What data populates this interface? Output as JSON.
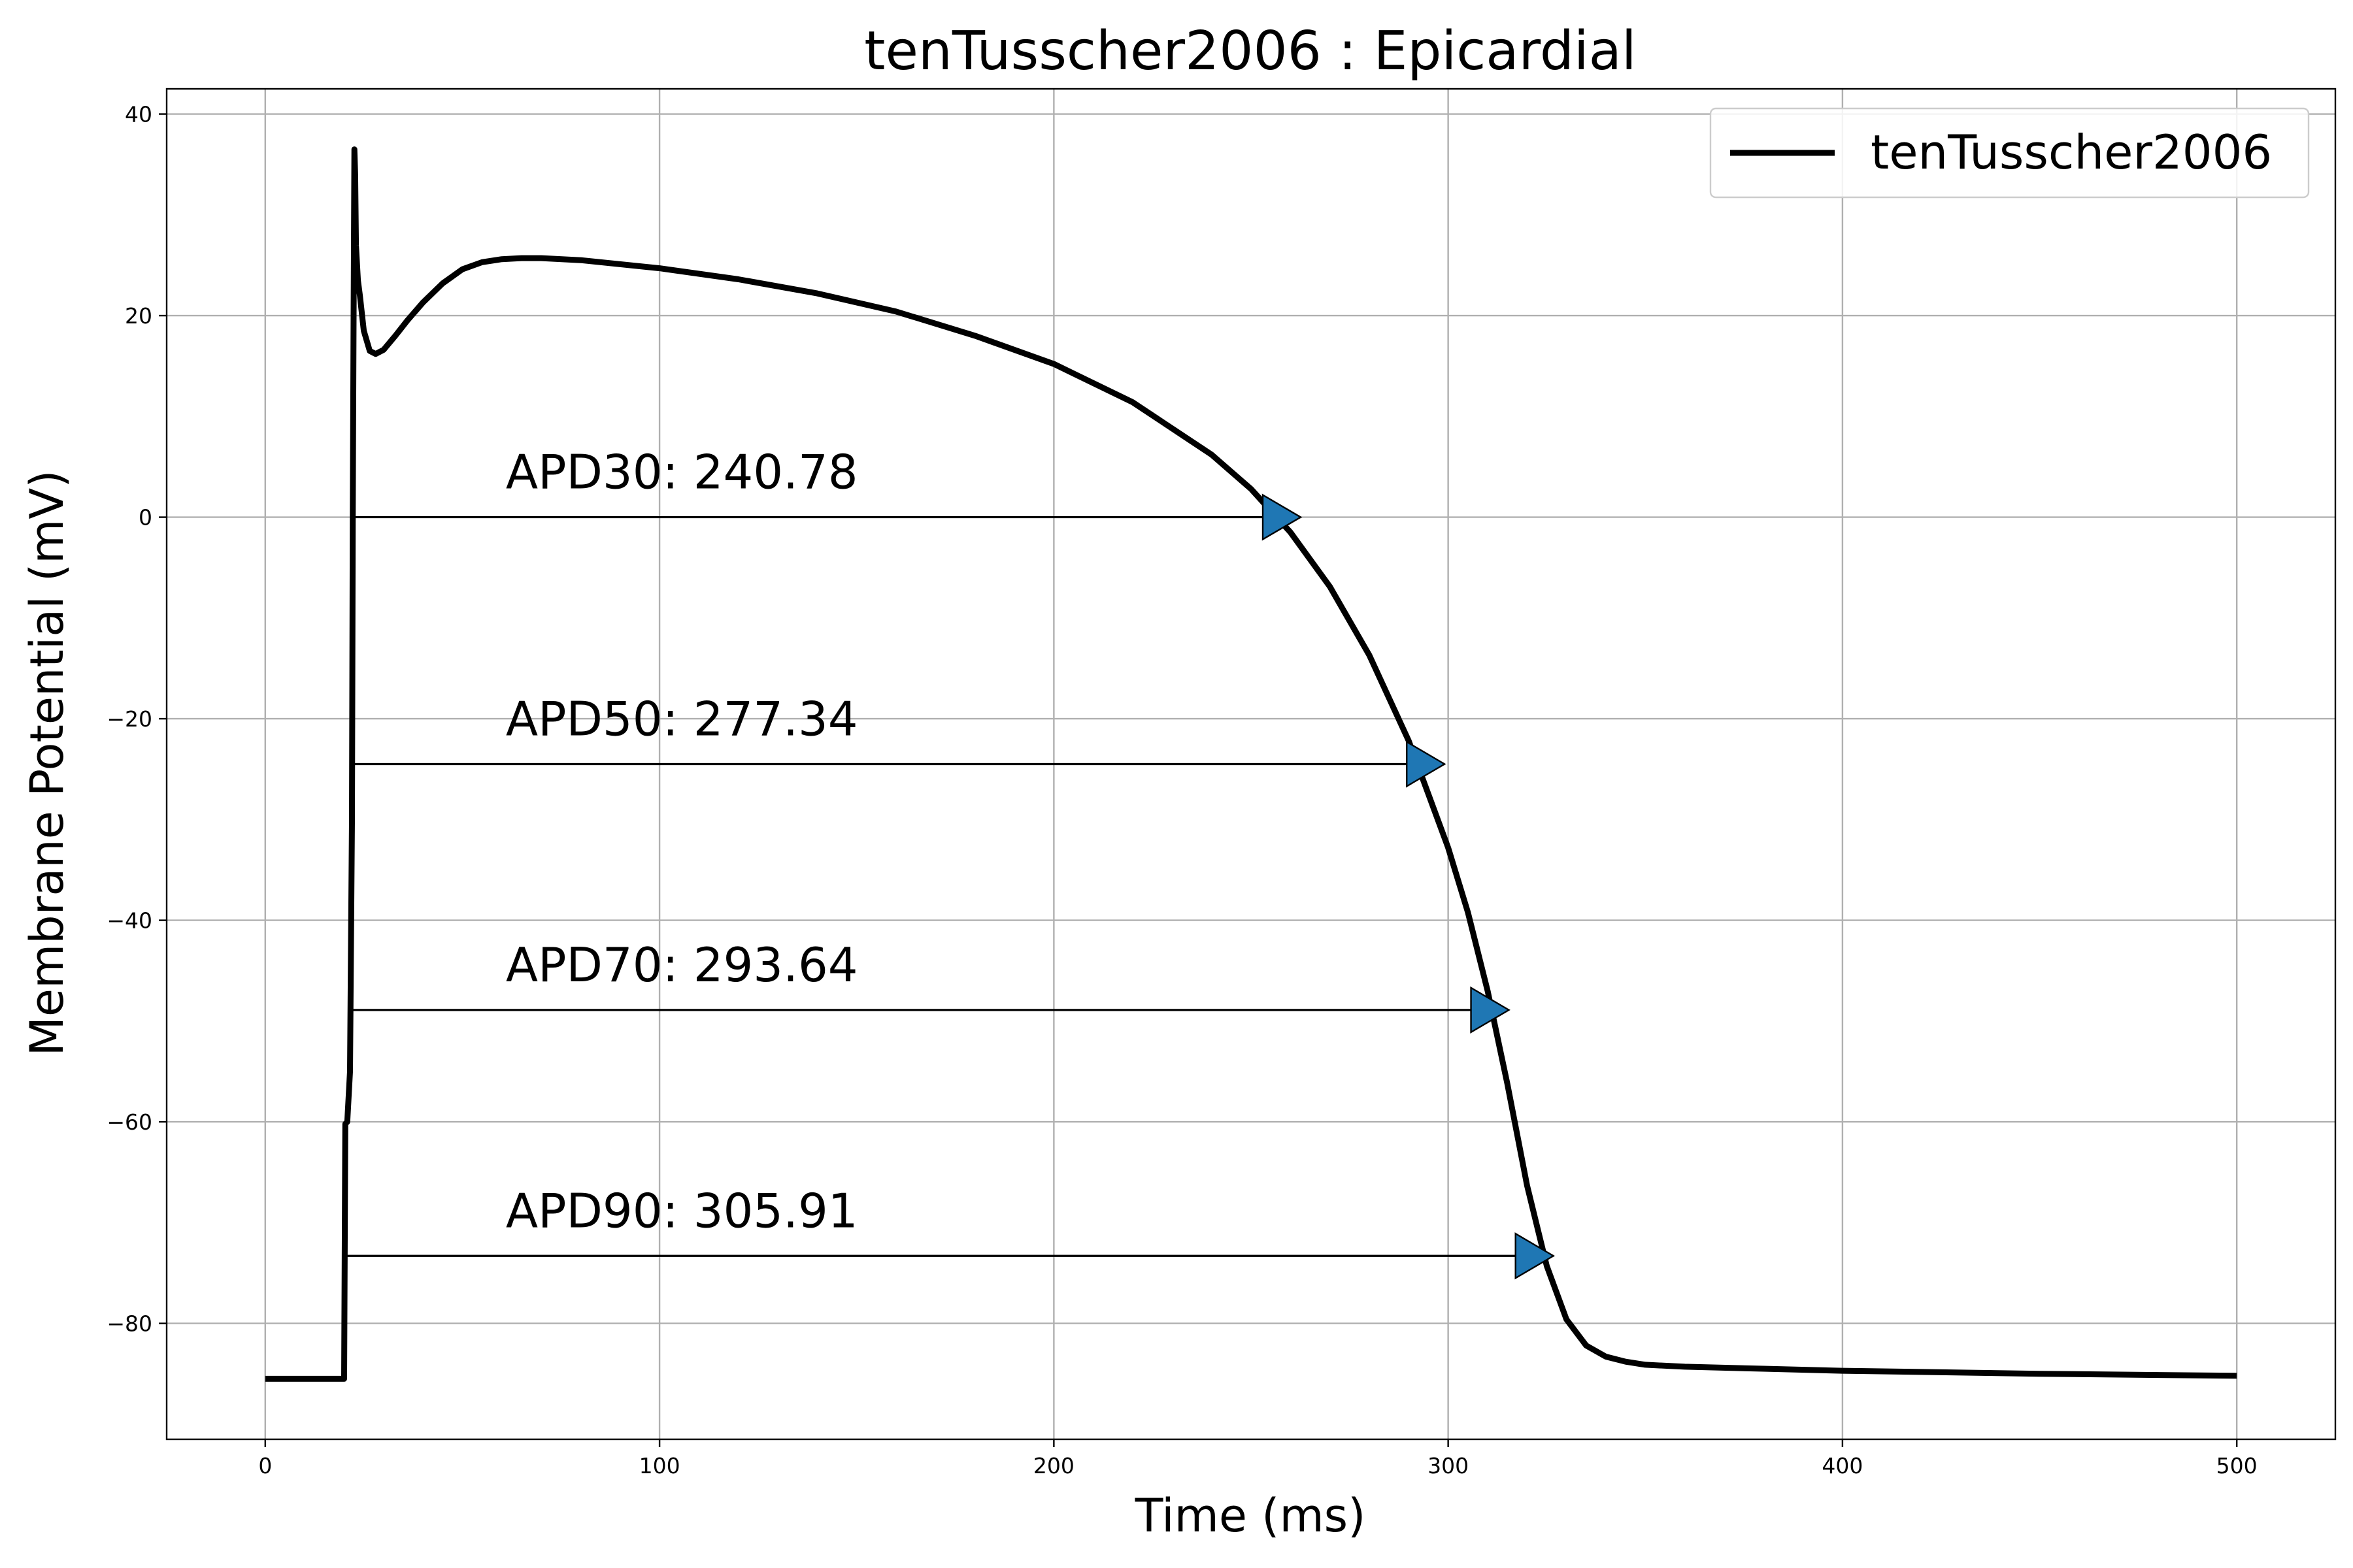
{
  "chart_data": {
    "type": "line",
    "title": "tenTusscher2006 : Epicardial",
    "xlabel": "Time (ms)",
    "ylabel": "Membrane Potential (mV)",
    "xlim": [
      -25,
      525
    ],
    "ylim": [
      -91.5,
      42.5
    ],
    "xticks": [
      0,
      100,
      200,
      300,
      400,
      500
    ],
    "yticks": [
      -80,
      -60,
      -40,
      -20,
      0,
      20,
      40
    ],
    "grid": true,
    "legend_position": "top-right",
    "series": [
      {
        "name": "tenTusscher2006",
        "color": "#000000",
        "x": [
          0,
          20,
          20.3,
          20.8,
          21.5,
          22,
          22.2,
          22.4,
          22.6,
          22.8,
          23,
          23.5,
          24,
          25,
          26.5,
          28,
          30,
          33,
          36,
          40,
          45,
          50,
          55,
          60,
          65,
          70,
          80,
          100,
          120,
          140,
          160,
          180,
          200,
          220,
          240,
          250,
          260,
          270,
          280,
          290,
          300,
          305,
          310,
          315,
          320,
          325,
          330,
          335,
          340,
          345,
          350,
          360,
          380,
          400,
          450,
          500
        ],
        "y": [
          -85.5,
          -85.5,
          -60.2,
          -60,
          -55,
          -30,
          0,
          20,
          36.5,
          34,
          27,
          23.5,
          22,
          18.5,
          16.5,
          16.2,
          16.6,
          18,
          19.5,
          21.3,
          23.2,
          24.6,
          25.3,
          25.6,
          25.7,
          25.7,
          25.5,
          24.7,
          23.6,
          22.2,
          20.4,
          18,
          15.2,
          11.4,
          6.2,
          2.8,
          -1.5,
          -6.9,
          -13.7,
          -22.2,
          -32.8,
          -39.2,
          -47,
          -56.2,
          -66.3,
          -74.3,
          -79.6,
          -82.2,
          -83.3,
          -83.8,
          -84.1,
          -84.3,
          -84.5,
          -84.7,
          -85,
          -85.2
        ]
      }
    ],
    "annotations": [
      {
        "label": "APD30: 240.78",
        "start_x": 21.8,
        "end_x": 262.6,
        "y": 0.0,
        "marker_color": "#1f77b4"
      },
      {
        "label": "APD50: 277.34",
        "start_x": 21.8,
        "end_x": 299.1,
        "y": -24.5,
        "marker_color": "#1f77b4"
      },
      {
        "label": "APD70: 293.64",
        "start_x": 21.8,
        "end_x": 315.4,
        "y": -48.9,
        "marker_color": "#1f77b4"
      },
      {
        "label": "APD90: 305.91",
        "start_x": 20.8,
        "end_x": 326.7,
        "y": -73.3,
        "marker_color": "#1f77b4"
      }
    ]
  }
}
